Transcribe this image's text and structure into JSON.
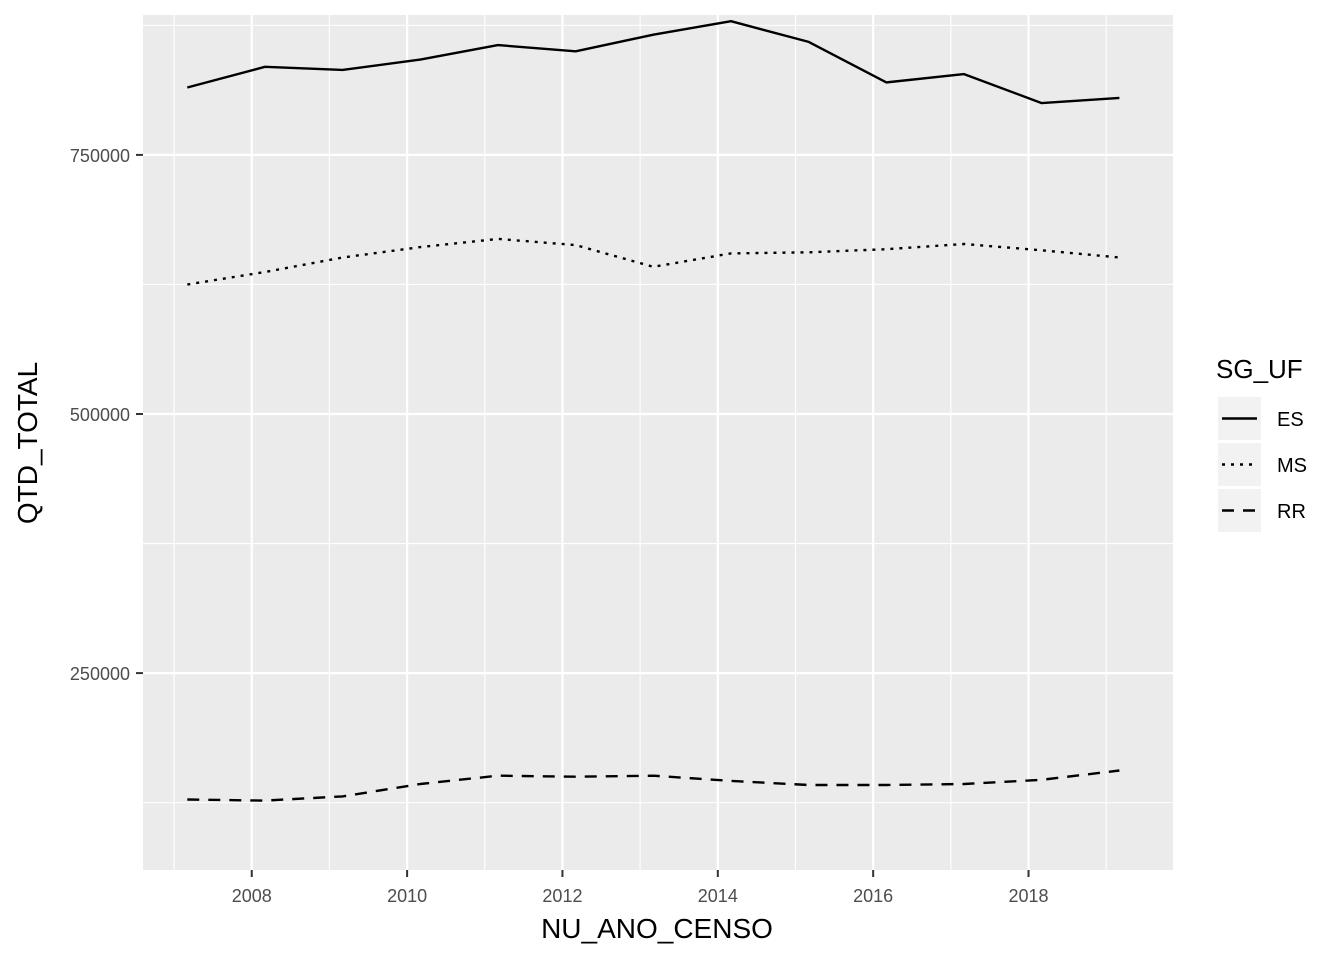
{
  "chart_data": {
    "type": "line",
    "title": "",
    "xlabel": "NU_ANO_CENSO",
    "ylabel": "QTD_TOTAL",
    "xlim": [
      2006.6,
      2019.86
    ],
    "ylim": [
      60000,
      885000
    ],
    "x_ticks": [
      2008,
      2010,
      2012,
      2014,
      2016,
      2018
    ],
    "y_ticks": [
      250000,
      500000,
      750000
    ],
    "x_tick_labels": [
      "2008",
      "2010",
      "2012",
      "2014",
      "2016",
      "2018"
    ],
    "y_tick_labels": [
      "250000",
      "500000",
      "750000"
    ],
    "grid": true,
    "legend": {
      "title": "SG_UF",
      "position": "right"
    },
    "x": [
      2007.17,
      2008.17,
      2009.17,
      2010.17,
      2011.17,
      2012.17,
      2013.17,
      2014.17,
      2015.17,
      2016.17,
      2017.17,
      2018.17,
      2019.17
    ],
    "series": [
      {
        "name": "ES",
        "linetype": "solid",
        "values": [
          815000,
          835000,
          832000,
          842000,
          856000,
          850000,
          866000,
          879000,
          859000,
          820000,
          828000,
          800000,
          805000
        ]
      },
      {
        "name": "MS",
        "linetype": "dotted",
        "values": [
          625000,
          637000,
          651000,
          661000,
          669000,
          663000,
          642000,
          655000,
          656000,
          659000,
          664000,
          658000,
          651000
        ]
      },
      {
        "name": "RR",
        "linetype": "dashed",
        "values": [
          128000,
          127000,
          131000,
          143000,
          151000,
          150000,
          151000,
          146000,
          142000,
          142000,
          143000,
          147000,
          156000
        ]
      }
    ],
    "colors": {
      "panel": "#ebebeb",
      "grid": "#ffffff",
      "line": "#000000",
      "axis_text": "#4d4d4d"
    }
  }
}
